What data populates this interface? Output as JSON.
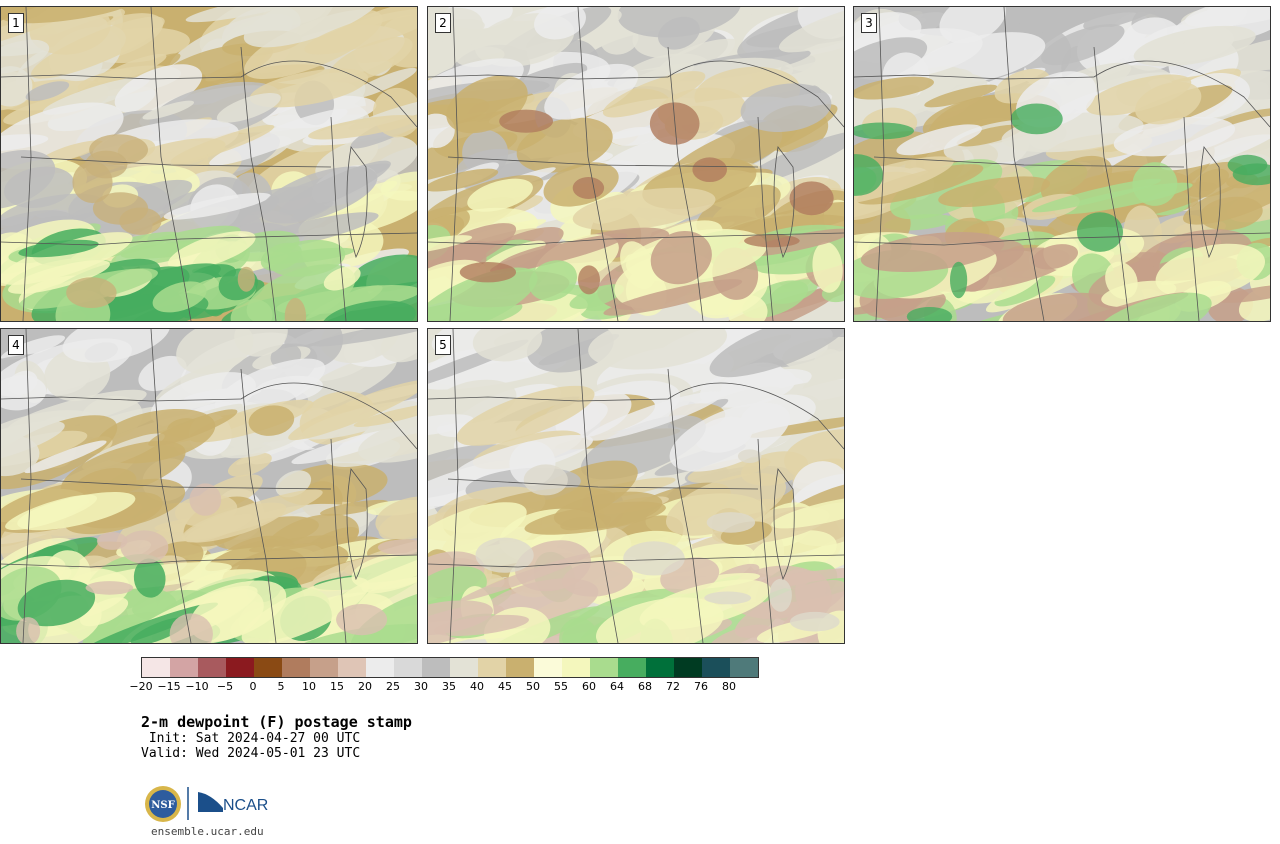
{
  "panels": [
    {
      "label": "1",
      "palette": [
        "#c9b06f",
        "#e2d3a7",
        "#e3e2d6",
        "#bdbdbd",
        "#ececec",
        "#f4f7bd",
        "#a9dc8e",
        "#47ad5f",
        "#c8b07a"
      ]
    },
    {
      "label": "2",
      "palette": [
        "#e3e2d6",
        "#bdbdbd",
        "#ececec",
        "#e2d3a7",
        "#c9b06f",
        "#f4f7bd",
        "#a9dc8e",
        "#c6a08a",
        "#b07c5e"
      ]
    },
    {
      "label": "3",
      "palette": [
        "#bdbdbd",
        "#e3e2d6",
        "#ececec",
        "#c9b06f",
        "#e2d3a7",
        "#a9dc8e",
        "#f4f7bd",
        "#c6a08a",
        "#47ad5f"
      ]
    },
    {
      "label": "4",
      "palette": [
        "#bdbdbd",
        "#ececec",
        "#e3e2d6",
        "#c9b06f",
        "#e2d3a7",
        "#f4f7bd",
        "#a9dc8e",
        "#47ad5f",
        "#d9bfb0"
      ]
    },
    {
      "label": "5",
      "palette": [
        "#e3e2d6",
        "#bdbdbd",
        "#ececec",
        "#e2d3a7",
        "#c9b06f",
        "#f4f7bd",
        "#a9dc8e",
        "#d9bfb0",
        "#ddd9cc"
      ]
    }
  ],
  "colorbar": {
    "colors": [
      "#f5e6e6",
      "#d3a4a4",
      "#a85a5e",
      "#8b1a1f",
      "#8a4a14",
      "#b07c5e",
      "#c6a08a",
      "#dfc5b6",
      "#ececec",
      "#d9d9d9",
      "#bdbdbd",
      "#e3e2d6",
      "#e2d3a7",
      "#c9b06f",
      "#fbfbd9",
      "#f4f7bd",
      "#a9dc8e",
      "#47ad5f",
      "#00703a",
      "#003b22",
      "#1b4f5a",
      "#4f7a7a"
    ],
    "ticks": [
      "−20",
      "−15",
      "−10",
      "−5",
      "0",
      "5",
      "10",
      "15",
      "20",
      "25",
      "30",
      "35",
      "40",
      "45",
      "50",
      "55",
      "60",
      "64",
      "68",
      "72",
      "76",
      "80"
    ]
  },
  "title": "2-m dewpoint (F) postage stamp",
  "init": " Init: Sat 2024-04-27 00 UTC",
  "valid": "Valid: Wed 2024-05-01 23 UTC",
  "logos": {
    "nsf": "NSF",
    "ncar": "NCAR"
  },
  "url": "ensemble.ucar.edu"
}
